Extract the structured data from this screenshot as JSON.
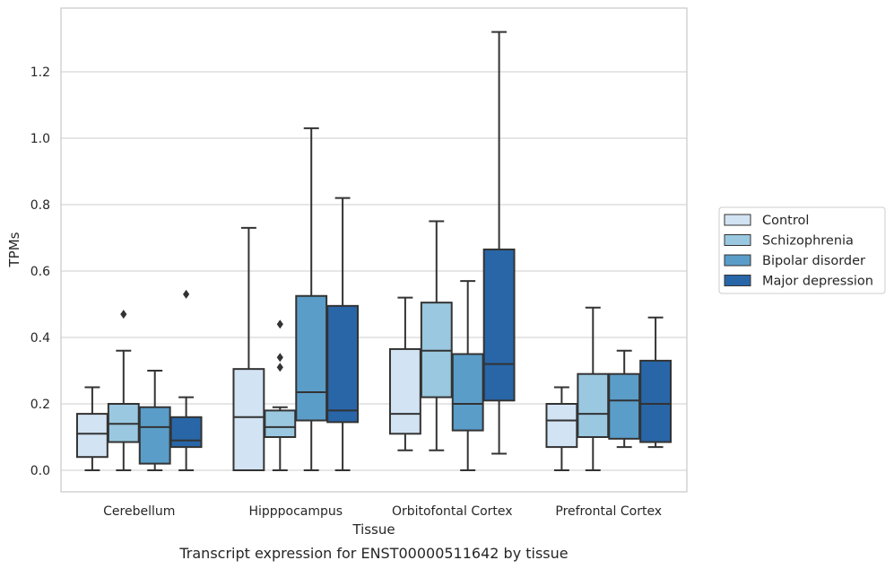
{
  "caption": "Transcript expression for ENST00000511642 by tissue",
  "colors": {
    "Control": "#d2e3f3",
    "Schizophrenia": "#9ac8e0",
    "Bipolar disorder": "#5a9dc8",
    "Major depression": "#2866a8",
    "grid": "#cccccc",
    "frame": "#cccccc",
    "line": "#333333"
  },
  "chart_data": {
    "type": "box",
    "title": "",
    "xlabel": "Tissue",
    "ylabel": "TPMs",
    "ylim": [
      -0.065,
      1.38
    ],
    "yticks": [
      0.0,
      0.2,
      0.4,
      0.6,
      0.8,
      1.0,
      1.2
    ],
    "ytick_labels": [
      "0.0",
      "0.2",
      "0.4",
      "0.6",
      "0.8",
      "1.0",
      "1.2"
    ],
    "grid": "horizontal",
    "legend_position": "right",
    "categories": [
      "Cerebellum",
      "Hipppocampus",
      "Orbitofontal Cortex",
      "Prefrontal Cortex"
    ],
    "series": [
      {
        "name": "Control",
        "boxes": [
          {
            "whislo": 0.0,
            "q1": 0.04,
            "med": 0.11,
            "q3": 0.17,
            "whishi": 0.25,
            "fliers": []
          },
          {
            "whislo": 0.0,
            "q1": 0.0,
            "med": 0.16,
            "q3": 0.305,
            "whishi": 0.73,
            "fliers": []
          },
          {
            "whislo": 0.06,
            "q1": 0.11,
            "med": 0.17,
            "q3": 0.365,
            "whishi": 0.52,
            "fliers": []
          },
          {
            "whislo": 0.0,
            "q1": 0.07,
            "med": 0.15,
            "q3": 0.2,
            "whishi": 0.25,
            "fliers": []
          }
        ]
      },
      {
        "name": "Schizophrenia",
        "boxes": [
          {
            "whislo": 0.0,
            "q1": 0.085,
            "med": 0.14,
            "q3": 0.2,
            "whishi": 0.36,
            "fliers": [
              0.47
            ]
          },
          {
            "whislo": 0.0,
            "q1": 0.1,
            "med": 0.13,
            "q3": 0.18,
            "whishi": 0.19,
            "fliers": [
              0.31,
              0.34,
              0.44
            ]
          },
          {
            "whislo": 0.06,
            "q1": 0.22,
            "med": 0.36,
            "q3": 0.505,
            "whishi": 0.75,
            "fliers": []
          },
          {
            "whislo": 0.0,
            "q1": 0.1,
            "med": 0.17,
            "q3": 0.29,
            "whishi": 0.49,
            "fliers": []
          }
        ]
      },
      {
        "name": "Bipolar disorder",
        "boxes": [
          {
            "whislo": 0.0,
            "q1": 0.02,
            "med": 0.13,
            "q3": 0.19,
            "whishi": 0.3,
            "fliers": []
          },
          {
            "whislo": 0.0,
            "q1": 0.15,
            "med": 0.235,
            "q3": 0.525,
            "whishi": 1.03,
            "fliers": []
          },
          {
            "whislo": 0.0,
            "q1": 0.12,
            "med": 0.2,
            "q3": 0.35,
            "whishi": 0.57,
            "fliers": []
          },
          {
            "whislo": 0.07,
            "q1": 0.095,
            "med": 0.21,
            "q3": 0.29,
            "whishi": 0.36,
            "fliers": []
          }
        ]
      },
      {
        "name": "Major depression",
        "boxes": [
          {
            "whislo": 0.0,
            "q1": 0.07,
            "med": 0.09,
            "q3": 0.16,
            "whishi": 0.22,
            "fliers": [
              0.53
            ]
          },
          {
            "whislo": 0.0,
            "q1": 0.145,
            "med": 0.18,
            "q3": 0.495,
            "whishi": 0.82,
            "fliers": []
          },
          {
            "whislo": 0.05,
            "q1": 0.21,
            "med": 0.32,
            "q3": 0.665,
            "whishi": 1.32,
            "fliers": []
          },
          {
            "whislo": 0.07,
            "q1": 0.085,
            "med": 0.2,
            "q3": 0.33,
            "whishi": 0.46,
            "fliers": []
          }
        ]
      }
    ]
  }
}
